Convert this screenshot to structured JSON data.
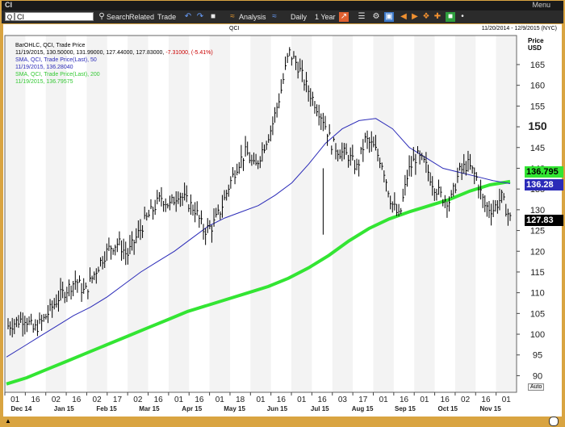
{
  "window": {
    "title": "CI",
    "menu_label": "Menu"
  },
  "toolbar": {
    "symbol_selector": "Q",
    "symbol": "CI",
    "search_label": "Search",
    "related_label": "Related",
    "trade_label": "Trade",
    "analysis_label": "Analysis",
    "period_label": "Daily",
    "range_label": "1 Year"
  },
  "chart_header": {
    "ticker": "QCI",
    "date_range": "11/20/2014 - 12/9/2015 (NYC)",
    "price_label": "Price",
    "currency": "USD"
  },
  "legend": {
    "line1": "BarOHLC, QCI, Trade Price",
    "line2_prefix": "11/19/2015, 130.50000, 131.99000, 127.44000, 127.83000,",
    "line2_change": "-7.31000, (-5.41%)",
    "line3": "SMA, QCI, Trade Price(Last), 50",
    "line4": "11/19/2015, 136.28040",
    "line5": "SMA, QCI, Trade Price(Last), 200",
    "line6": "11/19/2015, 136.79575"
  },
  "colors": {
    "frame": "#d9a441",
    "sma50": "#2b2bb8",
    "sma200": "#33e533",
    "bars": "#000000",
    "change_negative": "#cc0000"
  },
  "value_labels": {
    "sma200": "136.795",
    "sma50": "136.28",
    "last": "127.83"
  },
  "auto_label": "Auto",
  "chart_data": {
    "type": "line",
    "ylim": [
      86,
      172
    ],
    "yticks": [
      90,
      95,
      100,
      105,
      110,
      115,
      120,
      125,
      130,
      135,
      140,
      145,
      150,
      155,
      160,
      165
    ],
    "ytick_labels": [
      "90",
      "95",
      "100",
      "105",
      "110",
      "115",
      "120",
      "125",
      "130",
      "135",
      "140",
      "145",
      "150",
      "155",
      "160",
      "165"
    ],
    "xtick_labels": [
      "01",
      "16",
      "02",
      "16",
      "02",
      "17",
      "02",
      "16",
      "01",
      "16",
      "01",
      "18",
      "01",
      "16",
      "01",
      "16",
      "03",
      "17",
      "01",
      "16",
      "01",
      "16",
      "02",
      "16",
      "01"
    ],
    "month_labels": [
      "Dec 14",
      "Jan 15",
      "Feb 15",
      "Mar 15",
      "Apr 15",
      "May 15",
      "Jun 15",
      "Jul 15",
      "Aug 15",
      "Sep 15",
      "Oct 15",
      "Nov 15"
    ],
    "series": [
      {
        "name": "SMA, QCI, Trade Price(Last), 50",
        "values": [
          94.5,
          97,
          99.5,
          102,
          104.5,
          106.5,
          109,
          112,
          115,
          117.5,
          120,
          123,
          126,
          128,
          129.5,
          131,
          133.5,
          136.5,
          141,
          146,
          149.5,
          151.5,
          152,
          149.5,
          145,
          142.5,
          140,
          139,
          138,
          137,
          136.3
        ]
      },
      {
        "name": "SMA, QCI, Trade Price(Last), 200",
        "values": [
          88,
          89.5,
          91.5,
          93.5,
          95.5,
          97.5,
          99.5,
          101.5,
          103.5,
          105.5,
          107,
          108.5,
          110,
          111.5,
          113.5,
          116,
          119,
          122.5,
          125.5,
          127.8,
          129.5,
          131,
          132.5,
          134.5,
          136,
          136.8
        ]
      }
    ],
    "price_path": [
      102,
      103,
      104,
      101,
      103,
      106,
      109,
      111,
      113,
      110,
      114,
      118,
      121,
      122,
      119,
      123,
      127,
      130,
      133,
      131,
      134,
      132,
      130,
      125,
      126,
      130,
      136,
      141,
      144,
      140,
      145,
      150,
      158,
      168,
      165,
      160,
      156,
      152,
      146,
      144,
      143,
      140,
      147,
      145,
      141,
      132,
      128,
      139,
      143,
      141,
      136,
      133,
      132,
      139,
      141,
      138,
      131,
      130,
      133,
      127.83
    ]
  }
}
